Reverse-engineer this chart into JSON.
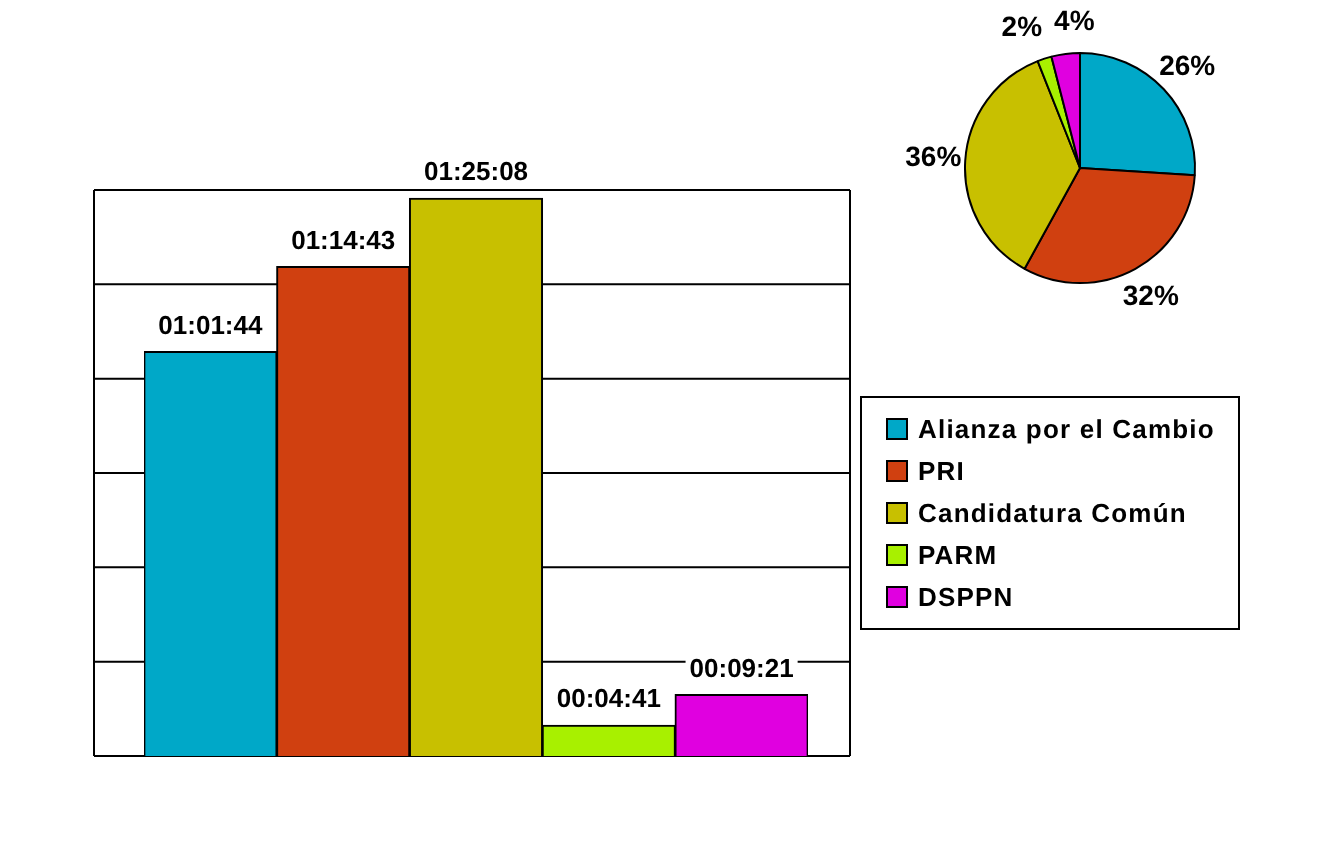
{
  "chart_data": [
    {
      "type": "bar",
      "categories": [
        null,
        null,
        null,
        null,
        null
      ],
      "values": [
        3704,
        4483,
        5108,
        281,
        561
      ],
      "colors": [
        "#00a8c8",
        "#d04010",
        "#c8c000",
        "#a8f000",
        "#e000e0"
      ],
      "value_labels": [
        "01:01:44",
        "01:14:43",
        "01:25:08",
        "00:04:41",
        "00:09:21"
      ],
      "ylim": [
        0,
        5184
      ],
      "yticks": [
        {
          "value": 0,
          "label": null
        },
        {
          "value": 864,
          "label": null
        },
        {
          "value": 1728,
          "label": null
        },
        {
          "value": 2592,
          "label": null
        },
        {
          "value": 3456,
          "label": null
        },
        {
          "value": 4320,
          "label": null
        },
        {
          "value": 5184,
          "label": null
        }
      ],
      "grid": "y",
      "tick_labels": false
    },
    {
      "type": "pie",
      "categories": [
        "Alianza por el Cambio",
        "PRI",
        "Candidatura Común",
        "PARM",
        "DSPPN"
      ],
      "values": [
        26,
        32,
        36,
        2,
        4
      ],
      "colors": [
        "#00a8c8",
        "#d04010",
        "#c8c000",
        "#a8f000",
        "#e000e0"
      ],
      "value_labels": [
        "26%",
        "32%",
        "36%",
        "2%",
        "4%"
      ],
      "legend": "bottom"
    }
  ]
}
